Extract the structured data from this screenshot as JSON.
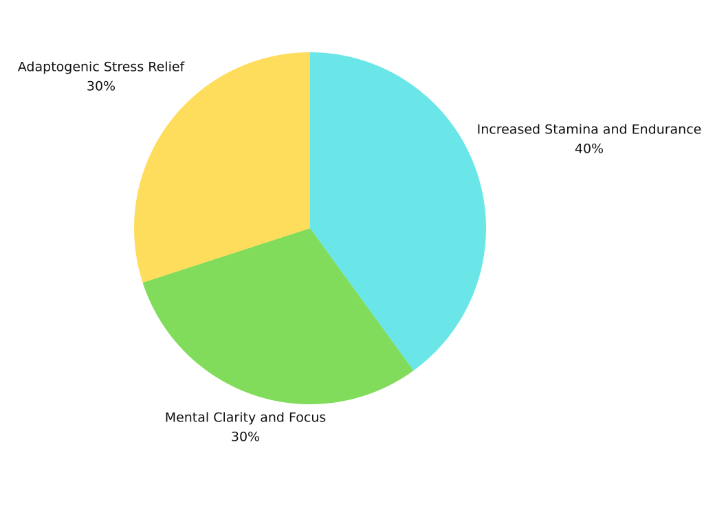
{
  "chart_data": {
    "type": "pie",
    "categories": [
      "Increased Stamina and Endurance",
      "Mental Clarity and Focus",
      "Adaptogenic Stress Relief"
    ],
    "values": [
      40,
      30,
      30
    ],
    "value_labels": [
      "40%",
      "30%",
      "30%"
    ],
    "colors": [
      "#6be6e8",
      "#80dc5a",
      "#ffdd5c"
    ]
  }
}
